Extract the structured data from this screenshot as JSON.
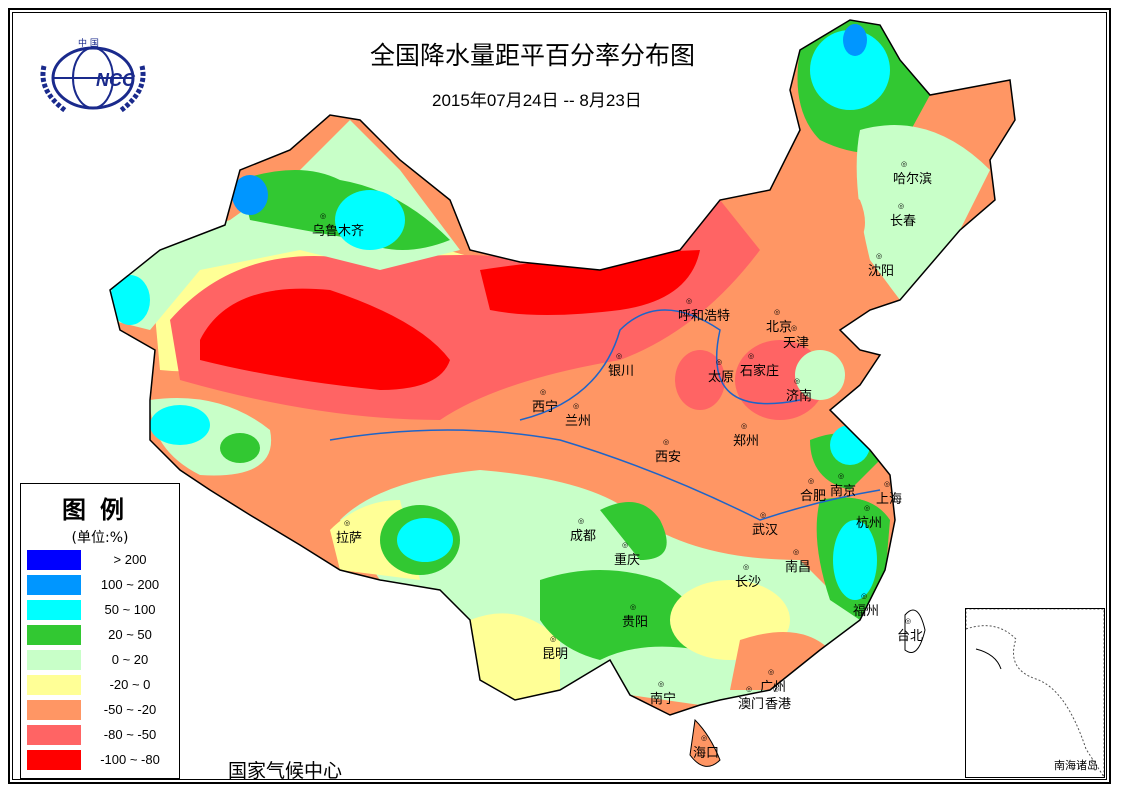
{
  "header": {
    "title": "全国降水量距平百分率分布图",
    "subtitle": "2015年07月24日 -- 8月23日"
  },
  "logo": {
    "text": "NCC",
    "caption": "中国"
  },
  "legend": {
    "title": "图例",
    "unit": "(单位:%)",
    "items": [
      {
        "label": "> 200",
        "color": "#0000ff"
      },
      {
        "label": "100 ~ 200",
        "color": "#0096ff"
      },
      {
        "label": "50 ~ 100",
        "color": "#00ffff"
      },
      {
        "label": "20 ~ 50",
        "color": "#32c832"
      },
      {
        "label": "0 ~ 20",
        "color": "#c8ffc8"
      },
      {
        "label": "-20 ~ 0",
        "color": "#ffff96"
      },
      {
        "label": "-50 ~ -20",
        "color": "#ff9664"
      },
      {
        "label": "-80 ~ -50",
        "color": "#ff6464"
      },
      {
        "label": "-100 ~ -80",
        "color": "#ff0000"
      }
    ]
  },
  "footer": {
    "organization": "国家气候中心"
  },
  "inset": {
    "label": "南海诸岛"
  },
  "cities": [
    "乌鲁木齐",
    "哈尔滨",
    "长春",
    "沈阳",
    "呼和浩特",
    "北京",
    "天津",
    "银川",
    "太原",
    "石家庄",
    "济南",
    "西宁",
    "兰州",
    "郑州",
    "西安",
    "合肥",
    "南京",
    "上海",
    "杭州",
    "成都",
    "武汉",
    "重庆",
    "拉萨",
    "南昌",
    "长沙",
    "福州",
    "贵阳",
    "台北",
    "昆明",
    "南宁",
    "广州",
    "澳门",
    "香港",
    "海口"
  ]
}
